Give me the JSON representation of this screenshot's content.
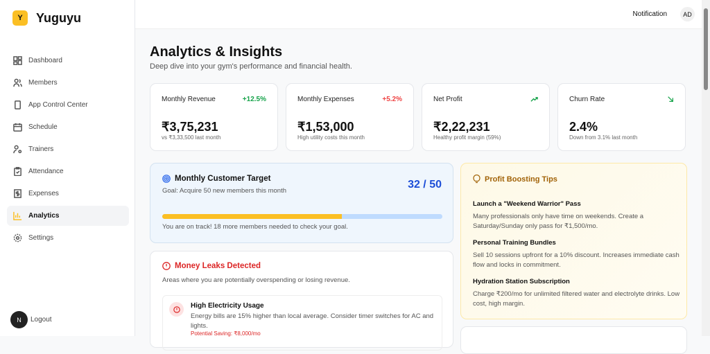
{
  "brand": {
    "logo_letter": "Y",
    "name": "Yuguyu"
  },
  "sidebar": {
    "items": [
      {
        "label": "Dashboard",
        "icon": "grid-icon"
      },
      {
        "label": "Members",
        "icon": "users-icon"
      },
      {
        "label": "App Control Center",
        "icon": "phone-icon"
      },
      {
        "label": "Schedule",
        "icon": "calendar-icon"
      },
      {
        "label": "Trainers",
        "icon": "user-cog-icon"
      },
      {
        "label": "Attendance",
        "icon": "clipboard-check-icon"
      },
      {
        "label": "Expenses",
        "icon": "receipt-dollar-icon"
      },
      {
        "label": "Analytics",
        "icon": "bar-chart-icon",
        "active": true
      },
      {
        "label": "Settings",
        "icon": "gear-icon"
      }
    ],
    "logout": "Logout",
    "avatar_letter": "N"
  },
  "header": {
    "notification": "Notification",
    "avatar": "AD"
  },
  "page": {
    "title": "Analytics & Insights",
    "subtitle": "Deep dive into your gym's performance and financial health."
  },
  "stats": [
    {
      "label": "Monthly Revenue",
      "change": "+12.5%",
      "change_color": "#16a34a",
      "value": "₹3,75,231",
      "note": "vs ₹3,33,500 last month"
    },
    {
      "label": "Monthly Expenses",
      "change": "+5.2%",
      "change_color": "#ef4444",
      "value": "₹1,53,000",
      "note": "High utility costs this month"
    },
    {
      "label": "Net Profit",
      "change_icon": "trending-up-icon",
      "value": "₹2,22,231",
      "note": "Healthy profit margin (59%)"
    },
    {
      "label": "Churn Rate",
      "change_icon": "arrow-down-right-icon",
      "value": "2.4%",
      "note": "Down from 3.1% last month"
    }
  ],
  "target": {
    "title": "Monthly Customer Target",
    "goal": "Goal: Acquire 50 new members this month",
    "count": "32 / 50",
    "progress": 0.64,
    "message": "You are on track! 18 more members needed to check your goal."
  },
  "leaks": {
    "title": "Money Leaks Detected",
    "subtitle": "Areas where you are potentially overspending or losing revenue.",
    "items": [
      {
        "title": "High Electricity Usage",
        "desc": "Energy bills are 15% higher than local average. Consider timer switches for AC and lights.",
        "saving": "Potential Saving: ₹8,000/mo"
      }
    ]
  },
  "tips": {
    "title": "Profit Boosting Tips",
    "items": [
      {
        "title": "Launch a \"Weekend Warrior\" Pass",
        "desc": "Many professionals only have time on weekends. Create a Saturday/Sunday only pass for ₹1,500/mo."
      },
      {
        "title": "Personal Training Bundles",
        "desc": "Sell 10 sessions upfront for a 10% discount. Increases immediate cash flow and locks in commitment."
      },
      {
        "title": "Hydration Station Subscription",
        "desc": "Charge ₹200/mo for unlimited filtered water and electrolyte drinks. Low cost, high margin."
      }
    ]
  }
}
